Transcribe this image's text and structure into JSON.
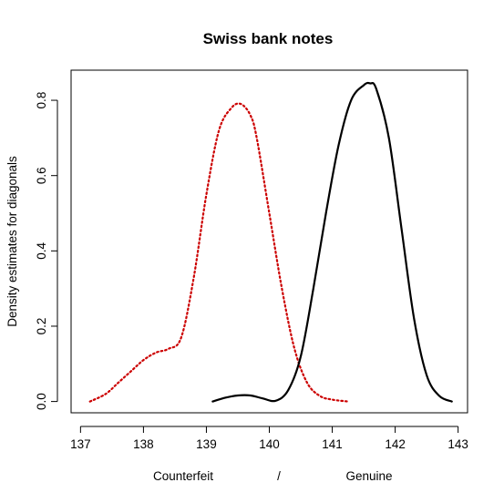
{
  "chart_data": {
    "type": "line",
    "title": "Swiss bank notes",
    "ylabel": "Density estimates for diagonals",
    "xlabel_parts": [
      "Counterfeit",
      "/",
      "Genuine"
    ],
    "xlim": [
      136.85,
      143.15
    ],
    "ylim": [
      -0.03,
      0.88
    ],
    "x_ticks": [
      "137",
      "138",
      "139",
      "140",
      "141",
      "142",
      "143"
    ],
    "y_ticks": [
      "0.0",
      "0.2",
      "0.4",
      "0.6",
      "0.8"
    ],
    "grid": false,
    "legend": "none",
    "series": [
      {
        "color": "#cc0000",
        "line_style": "dotted",
        "x": [
          137.15,
          137.4,
          137.6,
          137.8,
          138.0,
          138.2,
          138.4,
          138.6,
          138.8,
          139.0,
          139.2,
          139.4,
          139.55,
          139.7,
          139.8,
          140.0,
          140.2,
          140.4,
          140.6,
          140.8,
          141.0,
          141.25
        ],
        "y": [
          0.0,
          0.02,
          0.05,
          0.08,
          0.11,
          0.13,
          0.14,
          0.17,
          0.33,
          0.55,
          0.72,
          0.78,
          0.79,
          0.76,
          0.7,
          0.5,
          0.3,
          0.14,
          0.05,
          0.015,
          0.005,
          0.0
        ]
      },
      {
        "color": "#000000",
        "line_style": "solid",
        "x": [
          139.1,
          139.3,
          139.5,
          139.7,
          139.9,
          140.1,
          140.3,
          140.5,
          140.7,
          140.9,
          141.1,
          141.3,
          141.5,
          141.6,
          141.7,
          141.9,
          142.1,
          142.3,
          142.5,
          142.7,
          142.9
        ],
        "y": [
          0.0,
          0.01,
          0.016,
          0.016,
          0.008,
          0.002,
          0.03,
          0.12,
          0.3,
          0.5,
          0.68,
          0.8,
          0.84,
          0.845,
          0.83,
          0.7,
          0.46,
          0.22,
          0.07,
          0.015,
          0.0
        ]
      }
    ]
  }
}
